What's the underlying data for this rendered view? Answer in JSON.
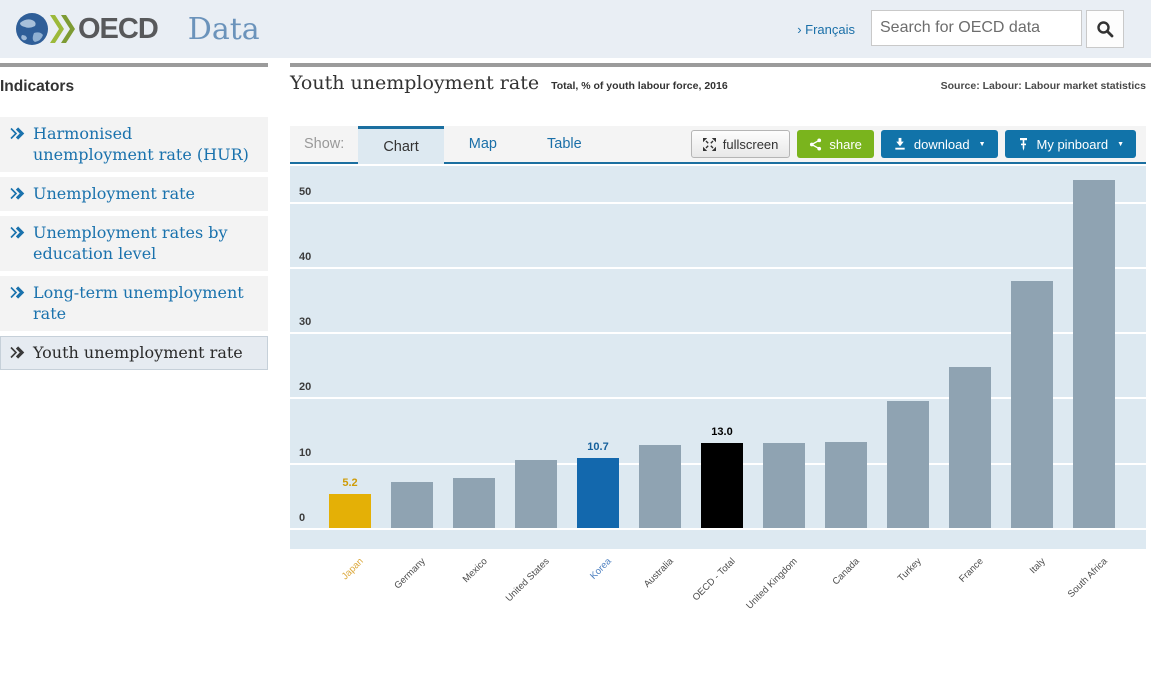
{
  "header": {
    "brand_oecd": "OECD",
    "brand_data": "Data",
    "language_link": "› Français",
    "search_placeholder": "Search for OECD data"
  },
  "sidebar": {
    "title": "Indicators",
    "items": [
      {
        "label": "Harmonised\nunemployment rate (HUR)",
        "active": false
      },
      {
        "label": "Unemployment rate",
        "active": false
      },
      {
        "label": "Unemployment rates by\neducation level",
        "active": false
      },
      {
        "label": "Long-term unemployment\nrate",
        "active": false
      },
      {
        "label": "Youth unemployment rate",
        "active": true
      }
    ]
  },
  "main": {
    "title": "Youth unemployment rate",
    "subtitle": "Total, % of youth labour force, 2016",
    "source": "Source: Labour: Labour market statistics",
    "show_label": "Show:",
    "tabs": [
      {
        "label": "Chart",
        "active": true
      },
      {
        "label": "Map",
        "active": false
      },
      {
        "label": "Table",
        "active": false
      }
    ],
    "buttons": {
      "fullscreen": "fullscreen",
      "share": "share",
      "download": "download",
      "pinboard": "My pinboard"
    }
  },
  "colors": {
    "header_bg": "#e9eef4",
    "link_blue": "#1a6fa8",
    "tab_accent_blue": "#1b6fa0",
    "share_green": "#7ab41d",
    "button_blue": "#1173a9",
    "plot_bg": "#dde9f1"
  },
  "chart_data": {
    "type": "bar",
    "title": "Youth unemployment rate",
    "subtitle": "Total, % of youth labour force, 2016",
    "categories": [
      "Japan",
      "Germany",
      "Mexico",
      "United States",
      "Korea",
      "Australia",
      "OECD - Total",
      "United Kingdom",
      "Canada",
      "Turkey",
      "France",
      "Italy",
      "South Africa"
    ],
    "values": [
      5.2,
      7.0,
      7.7,
      10.4,
      10.7,
      12.7,
      13.0,
      13.0,
      13.1,
      19.4,
      24.6,
      37.8,
      53.3
    ],
    "value_labels": [
      {
        "index": 0,
        "text": "5.2",
        "color": "#cf9c08"
      },
      {
        "index": 4,
        "text": "10.7",
        "color": "#15609c"
      },
      {
        "index": 6,
        "text": "13.0",
        "color": "#000000"
      }
    ],
    "bar_colors": {
      "0": "#e4b006",
      "4": "#1368ad",
      "6": "#000000",
      "default": "#8fa3b2"
    },
    "category_colors": {
      "0": "#dba83c",
      "4": "#4d80c0",
      "default": "#4d4d4d"
    },
    "yticks": [
      0,
      10,
      20,
      30,
      40,
      50
    ],
    "ylim": [
      0,
      55.5
    ],
    "xlabel": "",
    "ylabel": "% of youth labour force",
    "grid": "horizontal-white-lines",
    "legend": "none"
  }
}
